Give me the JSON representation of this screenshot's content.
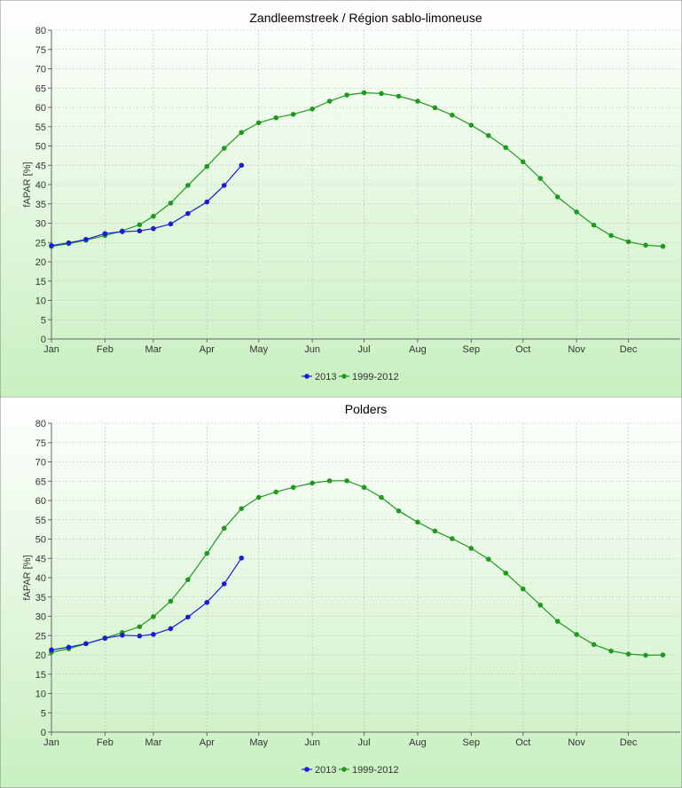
{
  "chart_data": [
    {
      "type": "line",
      "title": "Zandleemstreek / Région sablo-limoneuse",
      "ylabel": "fAPAR [%]",
      "xlabel": "",
      "ylim": [
        0,
        80
      ],
      "yticks": [
        0,
        5,
        10,
        15,
        20,
        25,
        30,
        35,
        40,
        45,
        50,
        55,
        60,
        65,
        70,
        75,
        80
      ],
      "xlim_day": [
        1,
        365
      ],
      "x_tick_labels": [
        "Jan",
        "Feb",
        "Mar",
        "Apr",
        "May",
        "Jun",
        "Jul",
        "Aug",
        "Sep",
        "Oct",
        "Nov",
        "Dec"
      ],
      "grid": true,
      "legend_position": "bottom",
      "series": [
        {
          "name": "2013",
          "color": "#1a1ae0",
          "x": [
            "2013-01-01",
            "2013-01-11",
            "2013-01-21",
            "2013-02-01",
            "2013-02-11",
            "2013-02-21",
            "2013-03-01",
            "2013-03-11",
            "2013-03-21",
            "2013-04-01",
            "2013-04-11",
            "2013-04-21"
          ],
          "values": [
            24.2,
            24.9,
            25.8,
            27.3,
            27.8,
            28.0,
            28.6,
            29.8,
            32.5,
            35.5,
            39.8,
            45.0
          ]
        },
        {
          "name": "1999-2012",
          "color": "#1f9a1f",
          "x": [
            "01-01",
            "01-11",
            "01-21",
            "02-01",
            "02-11",
            "02-21",
            "03-01",
            "03-11",
            "03-21",
            "04-01",
            "04-11",
            "04-21",
            "05-01",
            "05-11",
            "05-21",
            "06-01",
            "06-11",
            "06-21",
            "07-01",
            "07-11",
            "07-21",
            "08-01",
            "08-11",
            "08-21",
            "09-01",
            "09-11",
            "09-21",
            "10-01",
            "10-11",
            "10-21",
            "11-01",
            "11-11",
            "11-21",
            "12-01",
            "12-11",
            "12-21"
          ],
          "values": [
            24.0,
            24.7,
            25.6,
            26.8,
            28.0,
            29.6,
            31.8,
            35.2,
            39.8,
            44.7,
            49.4,
            53.5,
            56.0,
            57.3,
            58.2,
            59.6,
            61.6,
            63.2,
            63.8,
            63.6,
            62.9,
            61.6,
            59.9,
            58.0,
            55.4,
            52.7,
            49.6,
            45.9,
            41.6,
            36.8,
            32.9,
            29.5,
            26.8,
            25.2,
            24.3,
            24.0
          ]
        }
      ]
    },
    {
      "type": "line",
      "title": "Polders",
      "ylabel": "fAPAR [%]",
      "xlabel": "",
      "ylim": [
        0,
        80
      ],
      "yticks": [
        0,
        5,
        10,
        15,
        20,
        25,
        30,
        35,
        40,
        45,
        50,
        55,
        60,
        65,
        70,
        75,
        80
      ],
      "xlim_day": [
        1,
        365
      ],
      "x_tick_labels": [
        "Jan",
        "Feb",
        "Mar",
        "Apr",
        "May",
        "Jun",
        "Jul",
        "Aug",
        "Sep",
        "Oct",
        "Nov",
        "Dec"
      ],
      "grid": true,
      "legend_position": "bottom",
      "series": [
        {
          "name": "2013",
          "color": "#1a1ae0",
          "x": [
            "2013-01-01",
            "2013-01-11",
            "2013-01-21",
            "2013-02-01",
            "2013-02-11",
            "2013-02-21",
            "2013-03-01",
            "2013-03-11",
            "2013-03-21",
            "2013-04-01",
            "2013-04-11",
            "2013-04-21"
          ],
          "values": [
            21.3,
            22.0,
            22.9,
            24.3,
            25.1,
            24.9,
            25.3,
            26.8,
            29.8,
            33.6,
            38.4,
            45.1
          ]
        },
        {
          "name": "1999-2012",
          "color": "#1f9a1f",
          "x": [
            "01-01",
            "01-11",
            "01-21",
            "02-01",
            "02-11",
            "02-21",
            "03-01",
            "03-11",
            "03-21",
            "04-01",
            "04-11",
            "04-21",
            "05-01",
            "05-11",
            "05-21",
            "06-01",
            "06-11",
            "06-21",
            "07-01",
            "07-11",
            "07-21",
            "08-01",
            "08-11",
            "08-21",
            "09-01",
            "09-11",
            "09-21",
            "10-01",
            "10-11",
            "10-21",
            "11-01",
            "11-11",
            "11-21",
            "12-01",
            "12-11",
            "12-21"
          ],
          "values": [
            20.7,
            21.6,
            22.9,
            24.4,
            25.8,
            27.3,
            29.9,
            33.9,
            39.5,
            46.3,
            52.8,
            57.9,
            60.8,
            62.2,
            63.4,
            64.5,
            65.1,
            65.1,
            63.4,
            60.8,
            57.3,
            54.4,
            52.1,
            50.1,
            47.6,
            44.8,
            41.2,
            37.1,
            32.9,
            28.7,
            25.3,
            22.7,
            21.0,
            20.2,
            19.9,
            20.0
          ]
        }
      ]
    }
  ]
}
